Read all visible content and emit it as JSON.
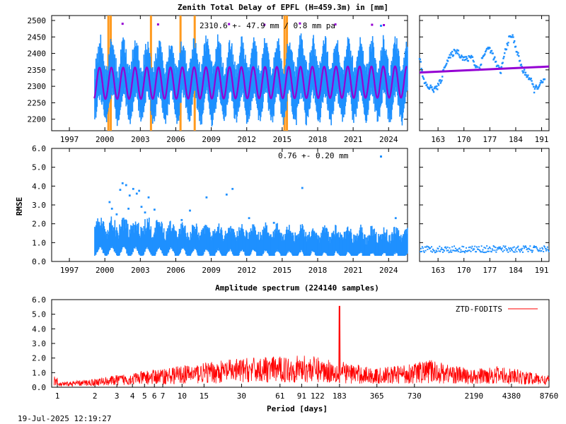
{
  "title": "Zenith Total Delay of EPFL (H=459.3m) in [mm]",
  "timestamp": "19-Jul-2025 12:19:27",
  "colors": {
    "data": "#1e90ff",
    "model": "#9400d3",
    "outlier": "#9400d3",
    "event": "#ff9a1f",
    "spectrum": "#ff0000"
  },
  "chart_data": [
    {
      "type": "scatter",
      "panel": "ztd-series",
      "annotation": "2310.6 +-  47.9 mm /  0.8 mm pa",
      "mean": 2310.6,
      "amplitude": 47.9,
      "trend_per_year": 0.8,
      "ylim": [
        2165,
        2515
      ],
      "yticks": [
        "2200",
        "2250",
        "2300",
        "2350",
        "2400",
        "2450",
        "2500"
      ],
      "xlim": [
        1995.5,
        2025.6
      ],
      "xticks": [
        "1997",
        "2000",
        "2003",
        "2006",
        "2009",
        "2012",
        "2015",
        "2018",
        "2021",
        "2024"
      ],
      "data_start": 1999.1,
      "event_lines": [
        2000.3,
        2000.5,
        2003.9,
        2006.4,
        2007.6,
        2015.2,
        2015.4
      ],
      "outliers": [
        [
          2001.5,
          2490
        ],
        [
          2004.5,
          2488
        ],
        [
          2010.5,
          2489
        ],
        [
          2016.5,
          2491
        ],
        [
          2022.6,
          2487
        ],
        [
          2023.6,
          2486
        ],
        [
          2019.5,
          2488
        ],
        [
          2013.5,
          2487
        ]
      ]
    },
    {
      "type": "scatter",
      "panel": "ztd-recent",
      "xlim": [
        158,
        193
      ],
      "xticks": [
        "163",
        "170",
        "177",
        "184",
        "191"
      ],
      "ylim": [
        2165,
        2515
      ],
      "trend_start": 2342,
      "trend_end": 2360,
      "series_points": [
        [
          158,
          2390
        ],
        [
          159,
          2320
        ],
        [
          160,
          2300
        ],
        [
          161,
          2295
        ],
        [
          162,
          2290
        ],
        [
          163,
          2300
        ],
        [
          164,
          2325
        ],
        [
          165,
          2370
        ],
        [
          166,
          2385
        ],
        [
          167,
          2400
        ],
        [
          168,
          2410
        ],
        [
          169,
          2395
        ],
        [
          170,
          2385
        ],
        [
          171,
          2380
        ],
        [
          172,
          2395
        ],
        [
          173,
          2365
        ],
        [
          174,
          2350
        ],
        [
          175,
          2385
        ],
        [
          176,
          2410
        ],
        [
          177,
          2415
        ],
        [
          178,
          2390
        ],
        [
          179,
          2360
        ],
        [
          180,
          2345
        ],
        [
          181,
          2400
        ],
        [
          182,
          2440
        ],
        [
          183,
          2455
        ],
        [
          184,
          2420
        ],
        [
          185,
          2380
        ],
        [
          186,
          2345
        ],
        [
          187,
          2335
        ],
        [
          188,
          2320
        ],
        [
          189,
          2290
        ],
        [
          190,
          2300
        ],
        [
          191,
          2310
        ],
        [
          192,
          2320
        ]
      ]
    },
    {
      "type": "scatter",
      "panel": "rmse-series",
      "annotation": "0.76 +-  0.20 mm",
      "ylabel": "RMSE",
      "ylim": [
        0,
        6
      ],
      "yticks": [
        "0.0",
        "1.0",
        "2.0",
        "3.0",
        "4.0",
        "5.0",
        "6.0"
      ],
      "xlim": [
        1995.5,
        2025.6
      ],
      "xticks": [
        "1997",
        "2000",
        "2003",
        "2006",
        "2009",
        "2012",
        "2015",
        "2018",
        "2021",
        "2024"
      ],
      "outliers": [
        [
          2000.4,
          3.15
        ],
        [
          2000.6,
          2.8
        ],
        [
          2001.3,
          3.8
        ],
        [
          2001.5,
          4.15
        ],
        [
          2001.8,
          4.05
        ],
        [
          2002.1,
          3.5
        ],
        [
          2002.4,
          3.85
        ],
        [
          2002.7,
          3.6
        ],
        [
          2002.9,
          3.75
        ],
        [
          2003.1,
          2.9
        ],
        [
          2003.4,
          2.6
        ],
        [
          2003.7,
          3.4
        ],
        [
          2004.2,
          2.75
        ],
        [
          2007.2,
          2.7
        ],
        [
          2008.6,
          3.4
        ],
        [
          2010.3,
          3.55
        ],
        [
          2010.8,
          3.85
        ],
        [
          2012.2,
          2.3
        ],
        [
          2014.3,
          2.05
        ],
        [
          2016.7,
          3.9
        ],
        [
          2024.6,
          2.3
        ],
        [
          2001.0,
          2.5
        ],
        [
          2002.0,
          2.8
        ],
        [
          2006.5,
          2.2
        ]
      ]
    },
    {
      "type": "scatter",
      "panel": "rmse-recent",
      "xlim": [
        158,
        193
      ],
      "xticks": [
        "163",
        "170",
        "177",
        "184",
        "191"
      ],
      "ylim": [
        0,
        6
      ]
    },
    {
      "type": "line",
      "panel": "spectrum",
      "title": "Amplitude spectrum (224140 samples)",
      "xlabel": "Period [days]",
      "legend": "ZTD-FODITS",
      "legend_position": "top-right",
      "xscale": "log",
      "xlim": [
        0.9,
        8760
      ],
      "xticks": [
        1,
        2,
        3,
        4,
        5,
        6,
        7,
        10,
        15,
        30,
        61,
        91,
        122,
        183,
        365,
        730,
        2190,
        4380,
        8760
      ],
      "ylim": [
        0,
        6
      ],
      "yticks": [
        "0.0",
        "1.0",
        "2.0",
        "3.0",
        "4.0",
        "5.0",
        "6.0"
      ],
      "peak": {
        "period": 183,
        "amplitude": 5.55
      },
      "envelope": [
        [
          1,
          0.3
        ],
        [
          2,
          0.6
        ],
        [
          4,
          1.0
        ],
        [
          10,
          1.5
        ],
        [
          30,
          2.0
        ],
        [
          100,
          2.2
        ],
        [
          183,
          1.8
        ],
        [
          365,
          1.3
        ],
        [
          730,
          1.7
        ],
        [
          1000,
          1.9
        ],
        [
          2190,
          1.2
        ],
        [
          3000,
          1.5
        ],
        [
          4380,
          1.3
        ],
        [
          8760,
          0.8
        ]
      ]
    }
  ]
}
